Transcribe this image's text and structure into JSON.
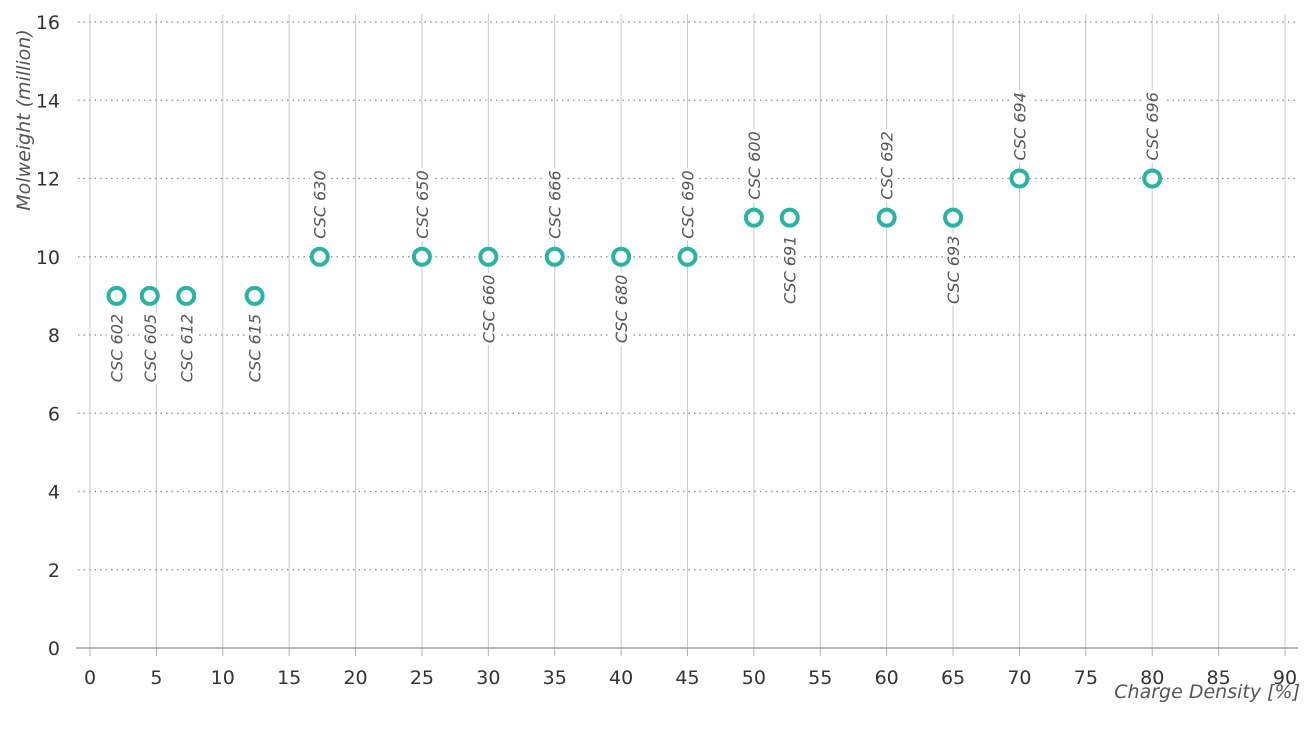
{
  "chart_data": {
    "type": "scatter",
    "title": "",
    "xlabel": "Charge Density [%]",
    "ylabel": "Molweight (million)",
    "xlim": [
      0,
      90
    ],
    "ylim": [
      0,
      16
    ],
    "xticks": [
      "0",
      "5",
      "10",
      "15",
      "20",
      "25",
      "30",
      "35",
      "40",
      "45",
      "50",
      "55",
      "60",
      "65",
      "70",
      "75",
      "80",
      "85",
      "90"
    ],
    "yticks": [
      "0",
      "2",
      "4",
      "6",
      "8",
      "10",
      "12",
      "14",
      "16"
    ],
    "grid": true,
    "marker_color": "#2ab3a0",
    "points": [
      {
        "label": "CSC 602",
        "x": 2,
        "y": 9,
        "label_pos": "below"
      },
      {
        "label": "CSC 605",
        "x": 4.5,
        "y": 9,
        "label_pos": "below"
      },
      {
        "label": "CSC 612",
        "x": 7.25,
        "y": 9,
        "label_pos": "below"
      },
      {
        "label": "CSC 615",
        "x": 12.4,
        "y": 9,
        "label_pos": "below"
      },
      {
        "label": "CSC 630",
        "x": 17.3,
        "y": 10,
        "label_pos": "above"
      },
      {
        "label": "CSC 650",
        "x": 25,
        "y": 10,
        "label_pos": "above"
      },
      {
        "label": "CSC 660",
        "x": 30,
        "y": 10,
        "label_pos": "below"
      },
      {
        "label": "CSC 666",
        "x": 35,
        "y": 10,
        "label_pos": "above"
      },
      {
        "label": "CSC 680",
        "x": 40,
        "y": 10,
        "label_pos": "below"
      },
      {
        "label": "CSC 690",
        "x": 45,
        "y": 10,
        "label_pos": "above"
      },
      {
        "label": "CSC 600",
        "x": 50,
        "y": 11,
        "label_pos": "above"
      },
      {
        "label": "CSC 691",
        "x": 52.7,
        "y": 11,
        "label_pos": "below"
      },
      {
        "label": "CSC 692",
        "x": 60,
        "y": 11,
        "label_pos": "above"
      },
      {
        "label": "CSC 693",
        "x": 65,
        "y": 11,
        "label_pos": "below"
      },
      {
        "label": "CSC 694",
        "x": 70,
        "y": 12,
        "label_pos": "above"
      },
      {
        "label": "CSC 696",
        "x": 80,
        "y": 12,
        "label_pos": "above"
      }
    ]
  }
}
